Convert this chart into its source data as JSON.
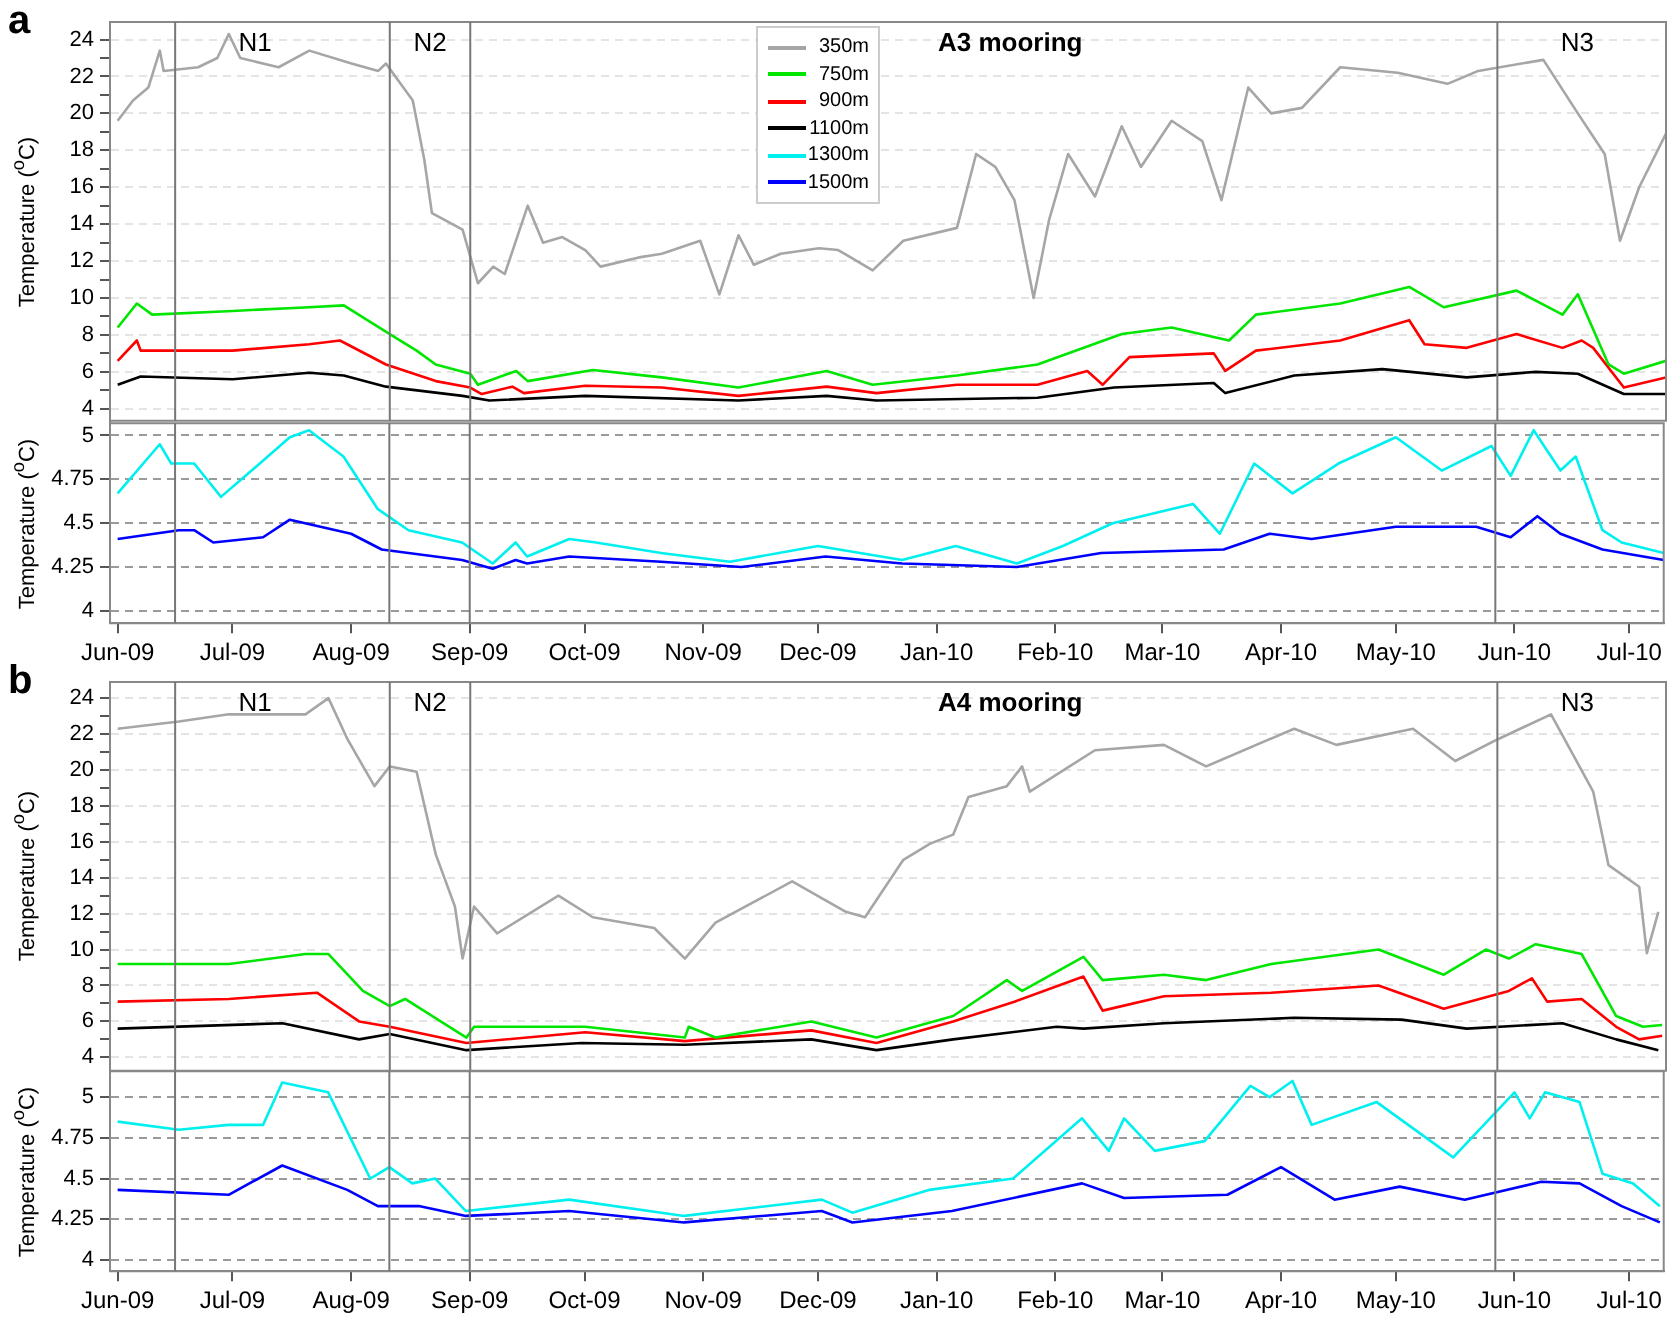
{
  "chart_data": [
    {
      "type": "line",
      "title": "A3 mooring",
      "ylabel": "Temperature ($^{o}$C)",
      "annotations": [
        "a"
      ],
      "xlim": [
        "2009-05-30",
        "2010-07-10"
      ],
      "ylim": [
        3.35,
        24.95
      ],
      "yticks": [
        4,
        {
          "value": 5,
          "label": null
        },
        6,
        {
          "value": 7,
          "label": null
        },
        8,
        {
          "value": 9,
          "label": null
        },
        10,
        {
          "value": 11,
          "label": null
        },
        12,
        {
          "value": 13,
          "label": null
        },
        14,
        {
          "value": 15,
          "label": null
        },
        16,
        {
          "value": 17,
          "label": null
        },
        18,
        {
          "value": 19,
          "label": null
        },
        20,
        {
          "value": 21,
          "label": null
        },
        22,
        {
          "value": 23,
          "label": null
        },
        24
      ],
      "tick_labels": "y",
      "grid": "y",
      "legend": "top",
      "ref_lines": [
        {
          "axis": "x",
          "value": "2009-06-16",
          "label": "N1"
        },
        {
          "axis": "x",
          "value": "2009-08-11",
          "label": "N2"
        },
        {
          "axis": "x",
          "value": "2009-09-01"
        },
        {
          "axis": "x",
          "value": "2010-05-27",
          "label": "N3"
        }
      ],
      "series": [
        {
          "name": "350m",
          "color": "#a6a6a6",
          "x": [
            "2009-06-01",
            "2009-06-05",
            "2009-06-09",
            "2009-06-12",
            "2009-06-13",
            "2009-06-22",
            "2009-06-27",
            "2009-06-30",
            "2009-07-03",
            "2009-07-13",
            "2009-07-21",
            "2009-08-01",
            "2009-08-08",
            "2009-08-10",
            "2009-08-17",
            "2009-08-20",
            "2009-08-22",
            "2009-08-30",
            "2009-09-03",
            "2009-09-07",
            "2009-09-10",
            "2009-09-16",
            "2009-09-20",
            "2009-09-25",
            "2009-10-01",
            "2009-10-05",
            "2009-10-15",
            "2009-10-21",
            "2009-10-31",
            "2009-11-05",
            "2009-11-10",
            "2009-11-14",
            "2009-11-21",
            "2009-12-01",
            "2009-12-06",
            "2009-12-15",
            "2009-12-23",
            "2010-01-06",
            "2010-01-11",
            "2010-01-16",
            "2010-01-21",
            "2010-01-26",
            "2010-01-30",
            "2010-02-04",
            "2010-02-11",
            "2010-02-18",
            "2010-02-23",
            "2010-03-03",
            "2010-03-11",
            "2010-03-16",
            "2010-03-23",
            "2010-03-29",
            "2010-04-06",
            "2010-04-16",
            "2010-05-01",
            "2010-05-14",
            "2010-05-22",
            "2010-06-08",
            "2010-06-17",
            "2010-06-24",
            "2010-06-28",
            "2010-07-03",
            "2010-07-10"
          ],
          "values": [
            19.6,
            20.7,
            21.4,
            23.4,
            22.3,
            22.5,
            23.0,
            24.3,
            23.0,
            22.5,
            23.4,
            22.7,
            22.3,
            22.7,
            20.7,
            17.5,
            14.6,
            13.7,
            10.8,
            11.7,
            11.3,
            15.0,
            13.0,
            13.3,
            12.6,
            11.7,
            12.2,
            12.4,
            13.1,
            10.2,
            13.4,
            11.8,
            12.4,
            12.7,
            12.6,
            11.5,
            13.1,
            13.8,
            17.8,
            17.1,
            15.3,
            10.0,
            14.2,
            17.8,
            15.5,
            19.3,
            17.1,
            19.6,
            18.5,
            15.3,
            21.4,
            20.0,
            20.3,
            22.5,
            22.2,
            21.6,
            22.3,
            22.9,
            20.0,
            17.8,
            13.1,
            16.0,
            18.9
          ]
        },
        {
          "name": "750m",
          "color": "#00e600",
          "x": [
            "2009-06-01",
            "2009-06-06",
            "2009-06-10",
            "2009-07-01",
            "2009-07-21",
            "2009-07-30",
            "2009-08-11",
            "2009-08-18",
            "2009-08-23",
            "2009-09-01",
            "2009-09-03",
            "2009-09-13",
            "2009-09-16",
            "2009-10-03",
            "2009-10-21",
            "2009-11-10",
            "2009-12-03",
            "2009-12-15",
            "2010-01-06",
            "2010-01-27",
            "2010-02-18",
            "2010-03-03",
            "2010-03-18",
            "2010-03-25",
            "2010-04-16",
            "2010-05-04",
            "2010-05-13",
            "2010-06-01",
            "2010-06-13",
            "2010-06-17",
            "2010-06-25",
            "2010-06-29",
            "2010-07-10"
          ],
          "values": [
            8.4,
            9.7,
            9.1,
            9.3,
            9.5,
            9.6,
            8.05,
            7.15,
            6.4,
            5.9,
            5.3,
            6.05,
            5.5,
            6.1,
            5.7,
            5.15,
            6.05,
            5.3,
            5.8,
            6.4,
            8.05,
            8.4,
            7.7,
            9.1,
            9.7,
            10.6,
            9.5,
            10.4,
            9.1,
            10.2,
            6.4,
            5.9,
            6.6
          ]
        },
        {
          "name": "900m",
          "color": "#ff0000",
          "x": [
            "2009-06-01",
            "2009-06-06",
            "2009-06-07",
            "2009-07-01",
            "2009-07-21",
            "2009-07-29",
            "2009-08-10",
            "2009-08-23",
            "2009-09-01",
            "2009-09-04",
            "2009-09-12",
            "2009-09-15",
            "2009-10-01",
            "2009-10-21",
            "2009-11-10",
            "2009-12-03",
            "2009-12-16",
            "2010-01-06",
            "2010-01-27",
            "2010-02-09",
            "2010-02-13",
            "2010-02-20",
            "2010-03-14",
            "2010-03-17",
            "2010-03-25",
            "2010-04-16",
            "2010-05-04",
            "2010-05-08",
            "2010-05-19",
            "2010-06-01",
            "2010-06-13",
            "2010-06-18",
            "2010-06-21",
            "2010-06-29",
            "2010-07-10"
          ],
          "values": [
            6.6,
            7.7,
            7.15,
            7.15,
            7.5,
            7.7,
            6.4,
            5.5,
            5.15,
            4.8,
            5.2,
            4.85,
            5.25,
            5.15,
            4.7,
            5.2,
            4.85,
            5.3,
            5.3,
            6.05,
            5.3,
            6.8,
            7.0,
            6.05,
            7.15,
            7.7,
            8.8,
            7.5,
            7.3,
            8.05,
            7.3,
            7.7,
            7.3,
            5.15,
            5.7
          ]
        },
        {
          "name": "1100m",
          "color": "#000000",
          "x": [
            "2009-06-01",
            "2009-06-07",
            "2009-07-01",
            "2009-07-21",
            "2009-07-30",
            "2009-08-10",
            "2009-08-30",
            "2009-09-06",
            "2009-10-01",
            "2009-11-10",
            "2009-12-03",
            "2009-12-16",
            "2010-01-27",
            "2010-02-16",
            "2010-03-14",
            "2010-03-17",
            "2010-04-04",
            "2010-04-27",
            "2010-05-19",
            "2010-06-06",
            "2010-06-17",
            "2010-06-29",
            "2010-07-10"
          ],
          "values": [
            5.3,
            5.75,
            5.6,
            5.95,
            5.8,
            5.2,
            4.7,
            4.45,
            4.7,
            4.45,
            4.7,
            4.45,
            4.6,
            5.15,
            5.4,
            4.85,
            5.8,
            6.15,
            5.7,
            6.0,
            5.9,
            4.8,
            4.8
          ]
        }
      ]
    },
    {
      "type": "line",
      "ylabel": "Temperature ($^{o}$C)",
      "xlim": [
        "2009-05-30",
        "2010-07-10"
      ],
      "xticks": [
        {
          "value": "2009-06-01",
          "label": "Jun-09"
        },
        {
          "value": "2009-07-01",
          "label": "Jul-09"
        },
        {
          "value": "2009-08-01",
          "label": "Aug-09"
        },
        {
          "value": "2009-09-01",
          "label": "Sep-09"
        },
        {
          "value": "2009-10-01",
          "label": "Oct-09"
        },
        {
          "value": "2009-11-01",
          "label": "Nov-09"
        },
        {
          "value": "2009-12-01",
          "label": "Dec-09"
        },
        {
          "value": "2010-01-01",
          "label": "Jan-10"
        },
        {
          "value": "2010-02-01",
          "label": "Feb-10"
        },
        {
          "value": "2010-03-01",
          "label": "Mar-10"
        },
        {
          "value": "2010-04-01",
          "label": "Apr-10"
        },
        {
          "value": "2010-05-01",
          "label": "May-10"
        },
        {
          "value": "2010-06-01",
          "label": "Jun-10"
        },
        {
          "value": "2010-07-01",
          "label": "Jul-10"
        }
      ],
      "ylim": [
        3.93,
        5.07
      ],
      "yticks": [
        4,
        4.25,
        4.5,
        4.75,
        5
      ],
      "grid": "y",
      "legend": "top",
      "ref_lines": [
        {
          "axis": "x",
          "value": "2009-06-16"
        },
        {
          "axis": "x",
          "value": "2009-08-11"
        },
        {
          "axis": "x",
          "value": "2009-09-01"
        },
        {
          "axis": "x",
          "value": "2010-05-27"
        }
      ],
      "series": [
        {
          "name": "1300m",
          "color": "#00f0f0",
          "x": [
            "2009-06-01",
            "2009-06-12",
            "2009-06-15",
            "2009-06-21",
            "2009-06-28",
            "2009-07-06",
            "2009-07-16",
            "2009-07-21",
            "2009-07-30",
            "2009-08-08",
            "2009-08-16",
            "2009-08-30",
            "2009-09-07",
            "2009-09-13",
            "2009-09-16",
            "2009-09-27",
            "2009-10-04",
            "2009-10-21",
            "2009-11-08",
            "2009-12-01",
            "2009-12-23",
            "2010-01-06",
            "2010-01-22",
            "2010-02-03",
            "2010-02-16",
            "2010-03-09",
            "2010-03-16",
            "2010-03-25",
            "2010-04-04",
            "2010-04-16",
            "2010-05-01",
            "2010-05-13",
            "2010-05-26",
            "2010-05-31",
            "2010-06-06",
            "2010-06-13",
            "2010-06-17",
            "2010-06-24",
            "2010-06-29",
            "2010-07-10"
          ],
          "values": [
            4.67,
            4.95,
            4.84,
            4.84,
            4.65,
            4.8,
            4.99,
            5.03,
            4.88,
            4.58,
            4.46,
            4.39,
            4.27,
            4.39,
            4.31,
            4.41,
            4.39,
            4.33,
            4.28,
            4.37,
            4.29,
            4.37,
            4.27,
            4.37,
            4.5,
            4.61,
            4.44,
            4.84,
            4.67,
            4.84,
            4.99,
            4.8,
            4.94,
            4.77,
            5.03,
            4.8,
            4.88,
            4.46,
            4.39,
            4.33
          ]
        },
        {
          "name": "1500m",
          "color": "#0000ff",
          "x": [
            "2009-06-01",
            "2009-06-17",
            "2009-06-21",
            "2009-06-26",
            "2009-07-09",
            "2009-07-16",
            "2009-08-01",
            "2009-08-09",
            "2009-08-30",
            "2009-09-07",
            "2009-09-13",
            "2009-09-16",
            "2009-09-27",
            "2009-10-21",
            "2009-11-11",
            "2009-12-03",
            "2009-12-23",
            "2010-01-22",
            "2010-02-13",
            "2010-03-17",
            "2010-03-29",
            "2010-04-09",
            "2010-05-01",
            "2010-05-22",
            "2010-05-31",
            "2010-06-07",
            "2010-06-13",
            "2010-06-24",
            "2010-07-10"
          ],
          "values": [
            4.41,
            4.46,
            4.46,
            4.39,
            4.42,
            4.52,
            4.44,
            4.35,
            4.29,
            4.24,
            4.29,
            4.27,
            4.31,
            4.28,
            4.25,
            4.31,
            4.27,
            4.25,
            4.33,
            4.35,
            4.44,
            4.41,
            4.48,
            4.48,
            4.42,
            4.54,
            4.44,
            4.35,
            4.29
          ]
        }
      ]
    },
    {
      "type": "line",
      "title": "A4 mooring",
      "ylabel": "Temperature ($^{o}$C)",
      "annotations": [
        "b"
      ],
      "xlim": [
        "2009-05-30",
        "2010-07-10"
      ],
      "ylim": [
        3.25,
        24.9
      ],
      "yticks": [
        4,
        {
          "value": 5,
          "label": null
        },
        6,
        {
          "value": 7,
          "label": null
        },
        8,
        {
          "value": 9,
          "label": null
        },
        10,
        {
          "value": 11,
          "label": null
        },
        12,
        {
          "value": 13,
          "label": null
        },
        14,
        {
          "value": 15,
          "label": null
        },
        16,
        {
          "value": 17,
          "label": null
        },
        18,
        {
          "value": 19,
          "label": null
        },
        20,
        {
          "value": 21,
          "label": null
        },
        22,
        {
          "value": 23,
          "label": null
        },
        24
      ],
      "tick_labels": "y",
      "grid": "y",
      "ref_lines": [
        {
          "axis": "x",
          "value": "2009-06-16",
          "label": "N1"
        },
        {
          "axis": "x",
          "value": "2009-08-11",
          "label": "N2"
        },
        {
          "axis": "x",
          "value": "2009-09-01"
        },
        {
          "axis": "x",
          "value": "2010-05-27",
          "label": "N3"
        }
      ],
      "series": [
        {
          "color": "#a6a6a6",
          "x": [
            "2009-06-01",
            "2009-06-17",
            "2009-06-30",
            "2009-07-20",
            "2009-07-26",
            "2009-07-31",
            "2009-08-07",
            "2009-08-11",
            "2009-08-18",
            "2009-08-23",
            "2009-08-28",
            "2009-08-30",
            "2009-09-02",
            "2009-09-08",
            "2009-09-24",
            "2009-10-03",
            "2009-10-19",
            "2009-10-27",
            "2009-11-04",
            "2009-11-24",
            "2009-12-08",
            "2009-12-13",
            "2009-12-23",
            "2009-12-30",
            "2010-01-05",
            "2010-01-09",
            "2010-01-19",
            "2010-01-23",
            "2010-01-25",
            "2010-02-11",
            "2010-03-01",
            "2010-03-12",
            "2010-04-04",
            "2010-04-15",
            "2010-05-05",
            "2010-05-16",
            "2010-05-27",
            "2010-06-10",
            "2010-06-21",
            "2010-06-25",
            "2010-07-03",
            "2010-07-05",
            "2010-07-08"
          ],
          "values": [
            22.3,
            22.7,
            23.1,
            23.1,
            24.0,
            21.7,
            19.1,
            20.2,
            19.9,
            15.3,
            12.4,
            9.5,
            12.4,
            10.9,
            13.0,
            11.8,
            11.2,
            9.5,
            11.5,
            13.8,
            12.1,
            11.8,
            15.0,
            15.9,
            16.4,
            18.5,
            19.1,
            20.2,
            18.8,
            21.1,
            21.4,
            20.2,
            22.3,
            21.4,
            22.3,
            20.5,
            21.7,
            23.1,
            18.8,
            14.7,
            13.5,
            9.8,
            12.1
          ]
        },
        {
          "color": "#00e600",
          "x": [
            "2009-06-01",
            "2009-06-30",
            "2009-07-20",
            "2009-07-26",
            "2009-08-04",
            "2009-08-11",
            "2009-08-15",
            "2009-08-31",
            "2009-09-02",
            "2009-10-01",
            "2009-10-27",
            "2009-10-28",
            "2009-11-04",
            "2009-11-29",
            "2009-12-16",
            "2010-01-05",
            "2010-01-19",
            "2010-01-23",
            "2010-02-08",
            "2010-02-13",
            "2010-03-01",
            "2010-03-12",
            "2010-03-29",
            "2010-04-26",
            "2010-05-13",
            "2010-05-24",
            "2010-05-30",
            "2010-06-06",
            "2010-06-18",
            "2010-06-27",
            "2010-07-04",
            "2010-07-09"
          ],
          "values": [
            9.2,
            9.2,
            9.75,
            9.75,
            7.7,
            6.85,
            7.25,
            5.1,
            5.7,
            5.7,
            5.1,
            5.7,
            5.1,
            6.0,
            5.1,
            6.3,
            8.3,
            7.7,
            9.6,
            8.3,
            8.6,
            8.3,
            9.2,
            10.0,
            8.6,
            10.0,
            9.5,
            10.3,
            9.75,
            6.3,
            5.7,
            5.8
          ]
        },
        {
          "color": "#ff0000",
          "x": [
            "2009-06-01",
            "2009-06-30",
            "2009-07-23",
            "2009-08-03",
            "2009-08-11",
            "2009-08-31",
            "2009-10-01",
            "2009-10-27",
            "2009-11-29",
            "2009-12-16",
            "2010-01-05",
            "2010-01-21",
            "2010-02-08",
            "2010-02-13",
            "2010-03-01",
            "2010-03-29",
            "2010-04-26",
            "2010-05-13",
            "2010-05-30",
            "2010-06-05",
            "2010-06-09",
            "2010-06-18",
            "2010-06-27",
            "2010-07-03",
            "2010-07-09"
          ],
          "values": [
            7.1,
            7.25,
            7.6,
            6.0,
            5.7,
            4.8,
            5.4,
            4.9,
            5.5,
            4.8,
            6.0,
            7.1,
            8.5,
            6.6,
            7.4,
            7.6,
            8.0,
            6.7,
            7.7,
            8.4,
            7.1,
            7.25,
            5.7,
            5.0,
            5.2
          ]
        },
        {
          "color": "#000000",
          "x": [
            "2009-06-01",
            "2009-07-14",
            "2009-08-03",
            "2009-08-11",
            "2009-08-31",
            "2009-09-30",
            "2009-10-27",
            "2009-11-29",
            "2009-12-16",
            "2010-01-05",
            "2010-02-01",
            "2010-02-08",
            "2010-03-01",
            "2010-04-04",
            "2010-05-02",
            "2010-05-19",
            "2010-06-13",
            "2010-06-27",
            "2010-07-08"
          ],
          "values": [
            5.6,
            5.9,
            5.0,
            5.3,
            4.4,
            4.8,
            4.7,
            5.0,
            4.4,
            5.0,
            5.7,
            5.6,
            5.9,
            6.2,
            6.1,
            5.6,
            5.9,
            5.0,
            4.4
          ]
        }
      ]
    },
    {
      "type": "line",
      "ylabel": "Temperature ($^{o}$C)",
      "xlim": [
        "2009-05-30",
        "2010-07-10"
      ],
      "xticks": [
        {
          "value": "2009-06-01",
          "label": "Jun-09"
        },
        {
          "value": "2009-07-01",
          "label": "Jul-09"
        },
        {
          "value": "2009-08-01",
          "label": "Aug-09"
        },
        {
          "value": "2009-09-01",
          "label": "Sep-09"
        },
        {
          "value": "2009-10-01",
          "label": "Oct-09"
        },
        {
          "value": "2009-11-01",
          "label": "Nov-09"
        },
        {
          "value": "2009-12-01",
          "label": "Dec-09"
        },
        {
          "value": "2010-01-01",
          "label": "Jan-10"
        },
        {
          "value": "2010-02-01",
          "label": "Feb-10"
        },
        {
          "value": "2010-03-01",
          "label": "Mar-10"
        },
        {
          "value": "2010-04-01",
          "label": "Apr-10"
        },
        {
          "value": "2010-05-01",
          "label": "May-10"
        },
        {
          "value": "2010-06-01",
          "label": "Jun-10"
        },
        {
          "value": "2010-07-01",
          "label": "Jul-10"
        }
      ],
      "ylim": [
        3.93,
        5.16
      ],
      "yticks": [
        4,
        4.25,
        4.5,
        4.75,
        5
      ],
      "grid": "y",
      "ref_lines": [
        {
          "axis": "x",
          "value": "2009-06-16"
        },
        {
          "axis": "x",
          "value": "2009-08-11"
        },
        {
          "axis": "x",
          "value": "2009-09-01"
        },
        {
          "axis": "x",
          "value": "2010-05-27"
        }
      ],
      "series": [
        {
          "color": "#00f0f0",
          "x": [
            "2009-06-01",
            "2009-06-17",
            "2009-06-30",
            "2009-07-09",
            "2009-07-14",
            "2009-07-26",
            "2009-08-06",
            "2009-08-11",
            "2009-08-17",
            "2009-08-23",
            "2009-08-31",
            "2009-09-27",
            "2009-10-27",
            "2009-12-02",
            "2009-12-10",
            "2009-12-30",
            "2010-01-21",
            "2010-02-08",
            "2010-02-15",
            "2010-02-19",
            "2010-02-27",
            "2010-03-12",
            "2010-03-24",
            "2010-03-29",
            "2010-04-04",
            "2010-04-09",
            "2010-04-26",
            "2010-05-16",
            "2010-05-24",
            "2010-06-01",
            "2010-06-05",
            "2010-06-09",
            "2010-06-18",
            "2010-06-24",
            "2010-07-02",
            "2010-07-09"
          ],
          "values": [
            4.85,
            4.8,
            4.83,
            4.83,
            5.09,
            5.03,
            4.5,
            4.57,
            4.47,
            4.5,
            4.3,
            4.37,
            4.27,
            4.37,
            4.29,
            4.43,
            4.5,
            4.87,
            4.67,
            4.87,
            4.67,
            4.73,
            5.07,
            5.0,
            5.1,
            4.83,
            4.97,
            4.63,
            4.83,
            5.03,
            4.87,
            5.03,
            4.97,
            4.53,
            4.47,
            4.33
          ]
        },
        {
          "color": "#0000ff",
          "x": [
            "2009-06-01",
            "2009-06-30",
            "2009-07-14",
            "2009-07-31",
            "2009-08-08",
            "2009-08-19",
            "2009-08-31",
            "2009-09-27",
            "2009-10-27",
            "2009-12-02",
            "2009-12-10",
            "2010-01-05",
            "2010-02-08",
            "2010-02-19",
            "2010-03-18",
            "2010-04-01",
            "2010-04-15",
            "2010-05-02",
            "2010-05-19",
            "2010-06-08",
            "2010-06-18",
            "2010-06-29",
            "2010-07-09"
          ],
          "values": [
            4.43,
            4.4,
            4.58,
            4.43,
            4.33,
            4.33,
            4.27,
            4.3,
            4.23,
            4.3,
            4.23,
            4.3,
            4.47,
            4.38,
            4.4,
            4.57,
            4.37,
            4.45,
            4.37,
            4.48,
            4.47,
            4.33,
            4.23
          ]
        }
      ]
    }
  ]
}
